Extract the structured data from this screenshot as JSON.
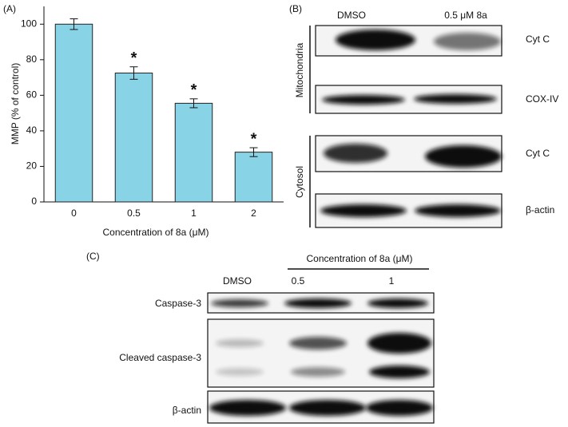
{
  "chart_data": {
    "type": "bar",
    "panel_label": "(A)",
    "y_label": "MMP (% of control)",
    "x_label": "Concentration of 8a (μM)",
    "categories": [
      "0",
      "0.5",
      "1",
      "2"
    ],
    "values": [
      100,
      72.5,
      55.5,
      28
    ],
    "errors": [
      3,
      3.5,
      2.5,
      2.5
    ],
    "significance": [
      null,
      "*",
      "*",
      "*"
    ],
    "color": "#89d3e6",
    "ylim": [
      0,
      110
    ],
    "yticks": [
      0,
      20,
      40,
      60,
      80,
      100
    ]
  },
  "panel_b": {
    "label": "(B)",
    "columns": [
      "DMSO",
      "0.5 μM 8a"
    ],
    "groups": [
      "Mitochondria",
      "Cytosol"
    ],
    "rows": [
      "Cyt C",
      "COX-IV",
      "Cyt C",
      "β-actin"
    ]
  },
  "panel_c": {
    "label": "(C)",
    "treatment": "Concentration of 8a (μM)",
    "columns": [
      "DMSO",
      "0.5",
      "1"
    ],
    "rows": [
      "Caspase-3",
      "Cleaved caspase-3",
      "β-actin"
    ]
  }
}
